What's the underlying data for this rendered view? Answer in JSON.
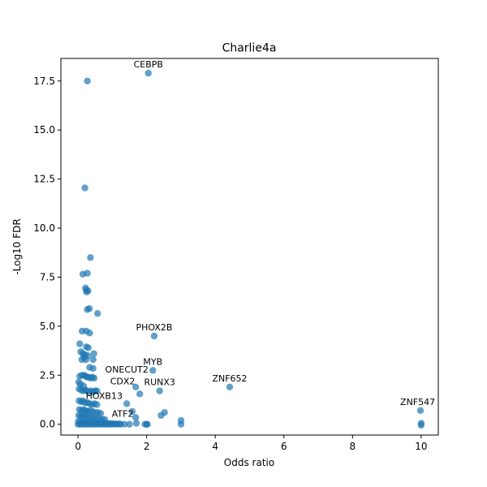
{
  "chart_data": {
    "type": "scatter",
    "title": "Charlie4a",
    "xlabel": "Odds ratio",
    "ylabel": "-Log10 FDR",
    "xlim": [
      -0.5,
      10.5
    ],
    "ylim": [
      -0.55,
      18.65
    ],
    "xticks": [
      0,
      2,
      4,
      6,
      8,
      10
    ],
    "xtick_labels": [
      "0",
      "2",
      "4",
      "6",
      "8",
      "10"
    ],
    "yticks": [
      0.0,
      2.5,
      5.0,
      7.5,
      10.0,
      12.5,
      15.0,
      17.5
    ],
    "ytick_labels": [
      "0.0",
      "2.5",
      "5.0",
      "7.5",
      "10.0",
      "12.5",
      "15.0",
      "17.5"
    ],
    "grid": false,
    "point_color": "#1f77b4",
    "point_alpha": 0.7,
    "points": [
      [
        0.27,
        17.5
      ],
      [
        0.2,
        12.05
      ],
      [
        0.36,
        8.5
      ],
      [
        0.14,
        7.65
      ],
      [
        0.27,
        7.7
      ],
      [
        0.22,
        6.95
      ],
      [
        0.24,
        6.85
      ],
      [
        0.25,
        6.75
      ],
      [
        0.29,
        6.8
      ],
      [
        0.27,
        5.85
      ],
      [
        0.33,
        5.9
      ],
      [
        0.57,
        5.65
      ],
      [
        0.05,
        4.1
      ],
      [
        0.12,
        4.75
      ],
      [
        0.24,
        4.75
      ],
      [
        0.34,
        4.65
      ],
      [
        0.24,
        3.95
      ],
      [
        0.3,
        3.9
      ],
      [
        0.46,
        3.6
      ],
      [
        0.08,
        3.7
      ],
      [
        0.14,
        3.6
      ],
      [
        0.2,
        3.55
      ],
      [
        0.28,
        3.5
      ],
      [
        0.18,
        3.4
      ],
      [
        0.11,
        3.3
      ],
      [
        0.23,
        3.3
      ],
      [
        0.44,
        3.3
      ],
      [
        0.34,
        2.9
      ],
      [
        0.44,
        2.85
      ],
      [
        0.05,
        2.45
      ],
      [
        0.12,
        2.5
      ],
      [
        0.18,
        2.5
      ],
      [
        0.22,
        2.45
      ],
      [
        0.27,
        2.4
      ],
      [
        0.32,
        2.4
      ],
      [
        0.37,
        2.35
      ],
      [
        0.42,
        2.4
      ],
      [
        0.47,
        2.35
      ],
      [
        0.02,
        2.15
      ],
      [
        0.07,
        2.05
      ],
      [
        0.16,
        1.95
      ],
      [
        0.03,
        1.8
      ],
      [
        0.09,
        1.75
      ],
      [
        0.15,
        1.7
      ],
      [
        0.21,
        1.75
      ],
      [
        0.26,
        1.7
      ],
      [
        0.32,
        1.65
      ],
      [
        0.38,
        1.7
      ],
      [
        0.44,
        1.65
      ],
      [
        0.5,
        1.7
      ],
      [
        0.55,
        1.7
      ],
      [
        0.03,
        1.2
      ],
      [
        0.09,
        1.15
      ],
      [
        0.14,
        1.2
      ],
      [
        0.2,
        1.1
      ],
      [
        0.27,
        1.1
      ],
      [
        0.34,
        1.05
      ],
      [
        0.41,
        1.0
      ],
      [
        0.48,
        1.05
      ],
      [
        0.55,
        1.0
      ],
      [
        0.04,
        0.75
      ],
      [
        0.1,
        0.7
      ],
      [
        0.16,
        0.75
      ],
      [
        0.22,
        0.7
      ],
      [
        0.28,
        0.65
      ],
      [
        0.35,
        0.7
      ],
      [
        0.42,
        0.65
      ],
      [
        0.5,
        0.6
      ],
      [
        0.58,
        0.6
      ],
      [
        0.66,
        0.55
      ],
      [
        0.02,
        0.45
      ],
      [
        0.08,
        0.4
      ],
      [
        0.14,
        0.45
      ],
      [
        0.2,
        0.4
      ],
      [
        0.26,
        0.4
      ],
      [
        0.33,
        0.35
      ],
      [
        0.4,
        0.4
      ],
      [
        0.47,
        0.35
      ],
      [
        0.54,
        0.3
      ],
      [
        0.62,
        0.3
      ],
      [
        0.7,
        0.25
      ],
      [
        0.78,
        0.25
      ],
      [
        0.01,
        0.15
      ],
      [
        0.07,
        0.12
      ],
      [
        0.13,
        0.15
      ],
      [
        0.19,
        0.1
      ],
      [
        0.25,
        0.12
      ],
      [
        0.32,
        0.1
      ],
      [
        0.39,
        0.08
      ],
      [
        0.46,
        0.1
      ],
      [
        0.53,
        0.08
      ],
      [
        0.61,
        0.06
      ],
      [
        0.69,
        0.06
      ],
      [
        0.77,
        0.05
      ],
      [
        0.85,
        0.04
      ],
      [
        0.93,
        0.04
      ],
      [
        1.01,
        0.03
      ],
      [
        1.1,
        0.02
      ],
      [
        1.2,
        0.02
      ],
      [
        0.0,
        0.0
      ],
      [
        0.05,
        0.0
      ],
      [
        0.11,
        0.0
      ],
      [
        0.17,
        0.0
      ],
      [
        0.23,
        0.0
      ],
      [
        0.29,
        0.0
      ],
      [
        0.36,
        0.0
      ],
      [
        0.43,
        0.0
      ],
      [
        0.5,
        0.0
      ],
      [
        0.57,
        0.0
      ],
      [
        0.64,
        0.0
      ],
      [
        0.72,
        0.0
      ],
      [
        0.8,
        0.0
      ],
      [
        0.88,
        0.0
      ],
      [
        0.96,
        0.0
      ],
      [
        1.05,
        0.0
      ],
      [
        1.14,
        0.0
      ],
      [
        1.24,
        0.0
      ],
      [
        1.35,
        0.0
      ],
      [
        1.5,
        0.0
      ],
      [
        1.7,
        0.05
      ],
      [
        2.0,
        0.0
      ],
      [
        2.02,
        0.0
      ],
      [
        3.0,
        0.0
      ],
      [
        3.0,
        0.2
      ],
      [
        1.95,
        0.0
      ],
      [
        1.42,
        1.05
      ],
      [
        1.58,
        0.65
      ],
      [
        1.68,
        0.35
      ],
      [
        2.42,
        0.45
      ],
      [
        2.52,
        0.6
      ],
      [
        1.68,
        1.9
      ],
      [
        1.8,
        1.55
      ],
      [
        2.38,
        1.7
      ],
      [
        2.18,
        2.75
      ],
      [
        2.22,
        4.5
      ],
      [
        2.05,
        17.9
      ],
      [
        4.42,
        1.9
      ],
      [
        9.98,
        0.7
      ],
      [
        10.0,
        0.05
      ],
      [
        10.0,
        -0.05
      ]
    ],
    "annotations": [
      {
        "text": "CEBPB",
        "x": 2.05,
        "y": 17.9
      },
      {
        "text": "PHOX2B",
        "x": 2.22,
        "y": 4.5
      },
      {
        "text": "MYB",
        "x": 2.18,
        "y": 2.75
      },
      {
        "text": "ONECUT2",
        "x": 1.42,
        "y": 2.35
      },
      {
        "text": "CDX2",
        "x": 1.3,
        "y": 1.75
      },
      {
        "text": "RUNX3",
        "x": 2.38,
        "y": 1.7
      },
      {
        "text": "ZNF652",
        "x": 4.42,
        "y": 1.9
      },
      {
        "text": "HOXB13",
        "x": 0.76,
        "y": 1.0
      },
      {
        "text": "ATF2",
        "x": 1.3,
        "y": 0.1
      },
      {
        "text": "ZNF547",
        "x": 9.9,
        "y": 0.7
      }
    ]
  }
}
